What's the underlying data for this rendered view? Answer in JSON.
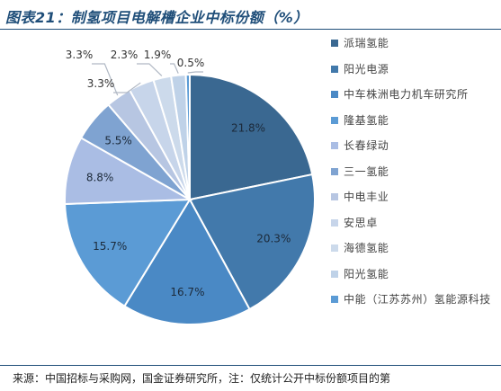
{
  "title": "图表21：制氢项目电解槽企业中标份额（%）",
  "source": "来源：中国招标与采购网，国金证券研究所，注：仅统计公开中标份额项目的第",
  "chart_data": {
    "type": "pie",
    "categories": [
      "派瑞氢能",
      "阳光电源",
      "中车株洲电力机车研究所",
      "隆基氢能",
      "长春绿动",
      "三一氢能",
      "中电丰业",
      "安思卓",
      "海德氢能",
      "阳光氢能",
      "中能（江苏苏州）氢能源科技"
    ],
    "values": [
      21.8,
      20.3,
      16.7,
      15.7,
      8.8,
      5.5,
      3.3,
      3.3,
      2.3,
      1.9,
      0.5
    ],
    "value_labels": [
      "21.8%",
      "20.3%",
      "16.7%",
      "15.7%",
      "8.8%",
      "5.5%",
      "3.3%",
      "3.3%",
      "2.3%",
      "1.9%",
      "0.5%"
    ],
    "colors": [
      "#3a6891",
      "#4279ab",
      "#4a89c5",
      "#5b9bd5",
      "#aabde4",
      "#7fa3d1",
      "#b7c6e2",
      "#c7d5ea",
      "#ccdaeb",
      "#bfd2e8",
      "#5b9bd5"
    ],
    "legend_position": "right",
    "start_angle_deg": 0,
    "direction": "clockwise"
  }
}
